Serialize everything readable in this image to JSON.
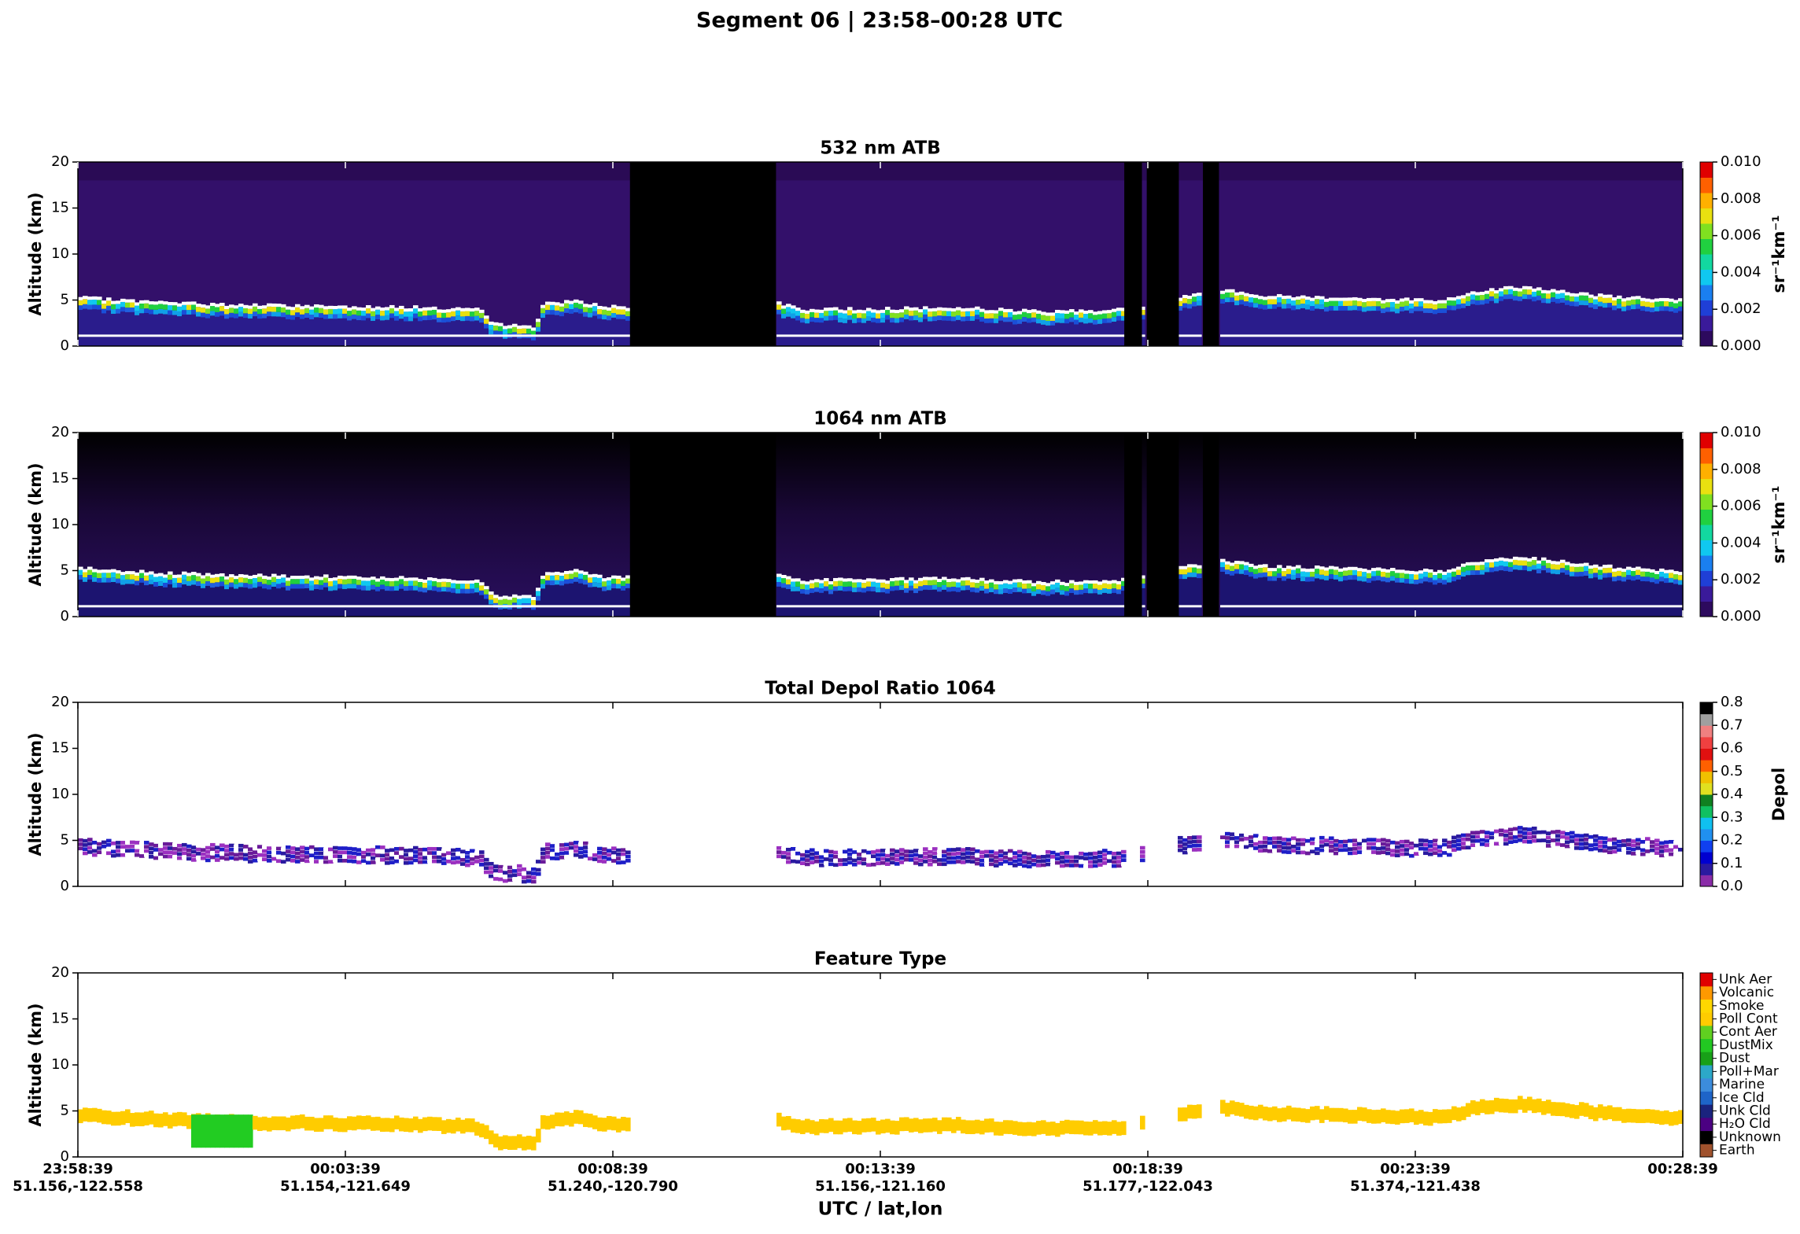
{
  "title": "Segment 06  |  23:58–00:28 UTC",
  "chart_data": [
    {
      "type": "atb",
      "title": "532 nm ATB",
      "ylabel": "Altitude (km)",
      "ylim": [
        0,
        20
      ],
      "yticks": [
        0,
        5,
        10,
        15,
        20
      ],
      "colorbar": {
        "label": "sr⁻¹km⁻¹",
        "lim": [
          0,
          0.01
        ],
        "ticks": [
          {
            "value": 0,
            "label": "0.000"
          },
          {
            "value": 0.002,
            "label": "0.002"
          },
          {
            "value": 0.004,
            "label": "0.004"
          },
          {
            "value": 0.006,
            "label": "0.006"
          },
          {
            "value": 0.008,
            "label": "0.008"
          },
          {
            "value": 0.01,
            "label": "0.010"
          }
        ],
        "colors": [
          "#2d0a5e",
          "#3a1a9a",
          "#1f3fd6",
          "#1a7ff0",
          "#10c8f0",
          "#12d8a0",
          "#20d040",
          "#80e020",
          "#e8e010",
          "#ffb000",
          "#ff6000",
          "#e00000"
        ]
      }
    },
    {
      "type": "atb",
      "title": "1064 nm ATB",
      "ylabel": "Altitude (km)",
      "ylim": [
        0,
        20
      ],
      "yticks": [
        0,
        5,
        10,
        15,
        20
      ],
      "colorbar": {
        "label": "sr⁻¹km⁻¹",
        "lim": [
          0,
          0.01
        ],
        "ticks": [
          {
            "value": 0,
            "label": "0.000"
          },
          {
            "value": 0.002,
            "label": "0.002"
          },
          {
            "value": 0.004,
            "label": "0.004"
          },
          {
            "value": 0.006,
            "label": "0.006"
          },
          {
            "value": 0.008,
            "label": "0.008"
          },
          {
            "value": 0.01,
            "label": "0.010"
          }
        ],
        "colors": [
          "#2d0a5e",
          "#3a1a9a",
          "#1f3fd6",
          "#1a7ff0",
          "#10c8f0",
          "#12d8a0",
          "#20d040",
          "#80e020",
          "#e8e010",
          "#ffb000",
          "#ff6000",
          "#e00000"
        ]
      }
    },
    {
      "type": "depol",
      "title": "Total Depol Ratio 1064",
      "ylabel": "Altitude (km)",
      "ylim": [
        0,
        20
      ],
      "yticks": [
        0,
        5,
        10,
        15,
        20
      ],
      "colorbar": {
        "label": "Depol",
        "lim": [
          0,
          0.8
        ],
        "ticks": [
          {
            "value": 0,
            "label": "0.0"
          },
          {
            "value": 0.1,
            "label": "0.1"
          },
          {
            "value": 0.2,
            "label": "0.2"
          },
          {
            "value": 0.3,
            "label": "0.3"
          },
          {
            "value": 0.4,
            "label": "0.4"
          },
          {
            "value": 0.5,
            "label": "0.5"
          },
          {
            "value": 0.6,
            "label": "0.6"
          },
          {
            "value": 0.7,
            "label": "0.7"
          },
          {
            "value": 0.8,
            "label": "0.8"
          }
        ],
        "colors": [
          "#8a2ca8",
          "#2a1aa0",
          "#0000d0",
          "#1040f0",
          "#2090f0",
          "#10c0f0",
          "#10c060",
          "#108020",
          "#e0e020",
          "#f0c000",
          "#ff6000",
          "#e01010",
          "#f04040",
          "#f08080",
          "#a0a0a0",
          "#000000"
        ]
      }
    },
    {
      "type": "feature",
      "title": "Feature Type",
      "ylabel": "Altitude (km)",
      "ylim": [
        0,
        20
      ],
      "yticks": [
        0,
        5,
        10,
        15,
        20
      ],
      "colorbar": {
        "categories": [
          "Earth",
          "Unknown",
          "H₂O Cld",
          "Unk Cld",
          "Ice Cld",
          "Marine",
          "Poll+Mar",
          "Dust",
          "DustMix",
          "Cont Aer",
          "Poll Cont",
          "Smoke",
          "Volcanic",
          "Unk Aer"
        ],
        "colors": [
          "#a0522d",
          "#000000",
          "#4b0082",
          "#1a237e",
          "#1e64c8",
          "#3c8cdc",
          "#2ca8c8",
          "#18a018",
          "#22c822",
          "#60d020",
          "#ffcc00",
          "#ffd700",
          "#ff9900",
          "#e00000"
        ]
      },
      "xlabel": "UTC / lat,lon",
      "categories": [
        "23:58:39",
        "00:03:39",
        "00:08:39",
        "00:13:39",
        "00:18:39",
        "00:23:39",
        "00:28:39"
      ],
      "positions": [
        "51.156,-122.558",
        "51.154,-121.649",
        "51.240,-120.790",
        "51.156,-121.160",
        "51.177,-122.043",
        "51.374,-121.438",
        null
      ]
    }
  ]
}
